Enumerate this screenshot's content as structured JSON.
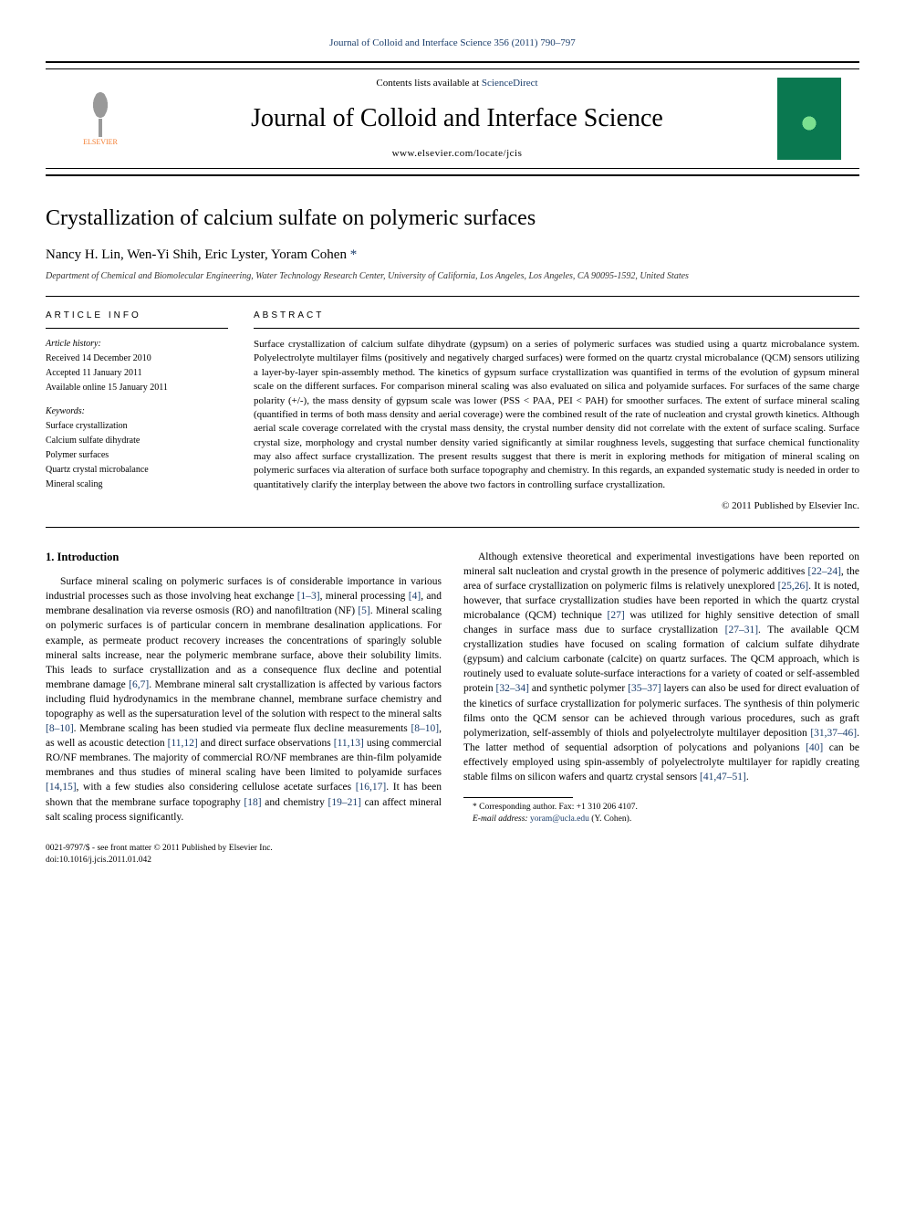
{
  "header": {
    "citation_prefix": "Journal of Colloid and Interface Science 356 (2011) 790–797",
    "contents_prefix": "Contents lists available at ",
    "contents_link": "ScienceDirect",
    "journal_name": "Journal of Colloid and Interface Science",
    "journal_url": "www.elsevier.com/locate/jcis",
    "publisher": "ELSEVIER"
  },
  "article": {
    "title": "Crystallization of calcium sulfate on polymeric surfaces",
    "authors_plain": "Nancy H. Lin, Wen-Yi Shih, Eric Lyster, Yoram Cohen",
    "corresponding_marker": "*",
    "affiliation": "Department of Chemical and Biomolecular Engineering, Water Technology Research Center, University of California, Los Angeles, Los Angeles, CA 90095-1592, United States"
  },
  "info": {
    "label": "article info",
    "history_label": "Article history:",
    "received": "Received 14 December 2010",
    "accepted": "Accepted 11 January 2011",
    "online": "Available online 15 January 2011",
    "keywords_label": "Keywords:",
    "keywords": [
      "Surface crystallization",
      "Calcium sulfate dihydrate",
      "Polymer surfaces",
      "Quartz crystal microbalance",
      "Mineral scaling"
    ]
  },
  "abstract": {
    "label": "abstract",
    "text": "Surface crystallization of calcium sulfate dihydrate (gypsum) on a series of polymeric surfaces was studied using a quartz microbalance system. Polyelectrolyte multilayer films (positively and negatively charged surfaces) were formed on the quartz crystal microbalance (QCM) sensors utilizing a layer-by-layer spin-assembly method. The kinetics of gypsum surface crystallization was quantified in terms of the evolution of gypsum mineral scale on the different surfaces. For comparison mineral scaling was also evaluated on silica and polyamide surfaces. For surfaces of the same charge polarity (+/-), the mass density of gypsum scale was lower (PSS < PAA, PEI < PAH) for smoother surfaces. The extent of surface mineral scaling (quantified in terms of both mass density and aerial coverage) were the combined result of the rate of nucleation and crystal growth kinetics. Although aerial scale coverage correlated with the crystal mass density, the crystal number density did not correlate with the extent of surface scaling. Surface crystal size, morphology and crystal number density varied significantly at similar roughness levels, suggesting that surface chemical functionality may also affect surface crystallization. The present results suggest that there is merit in exploring methods for mitigation of mineral scaling on polymeric surfaces via alteration of surface both surface topography and chemistry. In this regards, an expanded systematic study is needed in order to quantitatively clarify the interplay between the above two factors in controlling surface crystallization.",
    "copyright": "© 2011 Published by Elsevier Inc."
  },
  "body": {
    "heading": "1. Introduction",
    "p1a": "Surface mineral scaling on polymeric surfaces is of considerable importance in various industrial processes such as those involving heat exchange ",
    "r1": "[1–3]",
    "p1b": ", mineral processing ",
    "r2": "[4]",
    "p1c": ", and membrane desalination via reverse osmosis (RO) and nanofiltration (NF) ",
    "r3": "[5]",
    "p1d": ". Mineral scaling on polymeric surfaces is of particular concern in membrane desalination applications. For example, as permeate product recovery increases the concentrations of sparingly soluble mineral salts increase, near the polymeric membrane surface, above their solubility limits. This leads to surface crystallization and as a consequence flux decline and potential membrane damage ",
    "r4": "[6,7]",
    "p1e": ". Membrane mineral salt crystallization is affected by various factors including fluid hydrodynamics in the membrane channel, membrane surface chemistry and topography as well as the supersaturation level of the solution with respect to the mineral salts ",
    "r5": "[8–10]",
    "p1f": ". Membrane scaling has been studied via permeate flux decline measurements ",
    "r6": "[8–10]",
    "p1g": ", as well as acoustic detection ",
    "r7": "[11,12]",
    "p1h": " and direct surface observations ",
    "r8": "[11,13]",
    "p1i": " using commercial RO/NF membranes. The majority of commercial RO/NF membranes are thin-film polyamide membranes and thus studies of mineral scaling have been limited to polyamide surfaces ",
    "r9": "[14,15]",
    "p1j": ", with a few studies also considering cellulose acetate surfaces ",
    "r10": "[16,17]",
    "p1k": ". It has been shown that the membrane surface topography ",
    "r11": "[18]",
    "p1l": " and chemistry ",
    "r12": "[19–21]",
    "p1m": " can affect mineral salt scaling process significantly.",
    "p2a": "Although extensive theoretical and experimental investigations have been reported on mineral salt nucleation and crystal growth in the presence of polymeric additives ",
    "r13": "[22–24]",
    "p2b": ", the area of surface crystallization on polymeric films is relatively unexplored ",
    "r14": "[25,26]",
    "p2c": ". It is noted, however, that surface crystallization studies have been reported in which the quartz crystal microbalance (QCM) technique ",
    "r15": "[27]",
    "p2d": " was utilized for highly sensitive detection of small changes in surface mass due to surface crystallization ",
    "r16": "[27–31]",
    "p2e": ". The available QCM crystallization studies have focused on scaling formation of calcium sulfate dihydrate (gypsum) and calcium carbonate (calcite) on quartz surfaces. The QCM approach, which is routinely used to evaluate solute-surface interactions for a variety of coated or self-assembled protein ",
    "r17": "[32–34]",
    "p2f": " and synthetic polymer ",
    "r18": "[35–37]",
    "p2g": " layers can also be used for direct evaluation of the kinetics of surface crystallization for polymeric surfaces. The synthesis of thin polymeric films onto the QCM sensor can be achieved through various procedures, such as graft polymerization, self-assembly of thiols and polyelectrolyte multilayer deposition ",
    "r19": "[31,37–46]",
    "p2h": ". The latter method of sequential adsorption of polycations and polyanions ",
    "r20": "[40]",
    "p2i": " can be effectively employed using spin-assembly of polyelectrolyte multilayer for rapidly creating stable films on silicon wafers and quartz crystal sensors ",
    "r21": "[41,47–51]",
    "p2j": "."
  },
  "footnote": {
    "corr": "* Corresponding author. Fax: +1 310 206 4107.",
    "email_label": "E-mail address: ",
    "email": "yoram@ucla.edu",
    "email_tail": " (Y. Cohen)."
  },
  "footer": {
    "front": "0021-9797/$ - see front matter © 2011 Published by Elsevier Inc.",
    "doi": "doi:10.1016/j.jcis.2011.01.042"
  },
  "colors": {
    "link": "#1a3d6b",
    "publisher": "#f47d30",
    "cover": "#0a7850"
  }
}
